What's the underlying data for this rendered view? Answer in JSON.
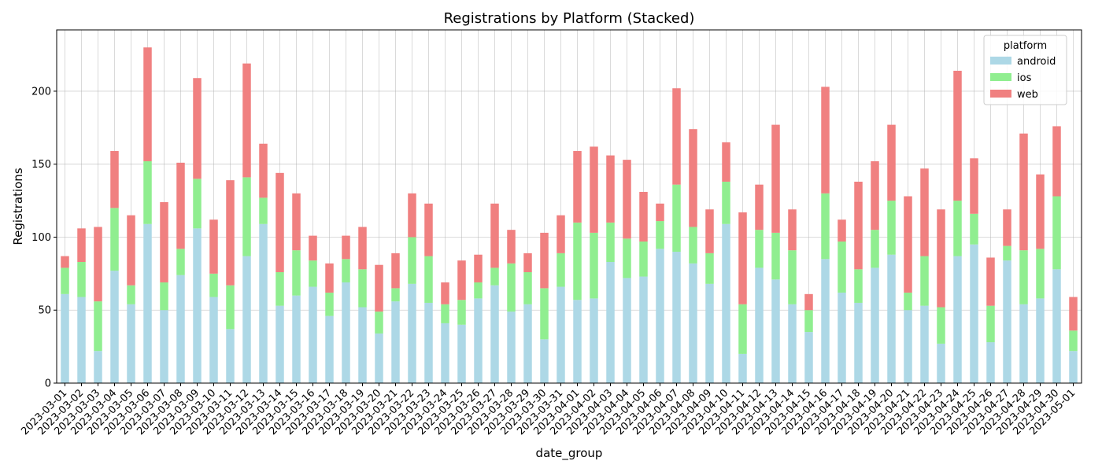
{
  "chart_data": {
    "type": "bar",
    "stacked": true,
    "title": "Registrations by Platform (Stacked)",
    "xlabel": "date_group",
    "ylabel": "Registrations",
    "ylim": [
      0,
      242
    ],
    "yticks": [
      0,
      50,
      100,
      150,
      200
    ],
    "grid": true,
    "legend": {
      "title": "platform",
      "placement": "top-right"
    },
    "categories": [
      "2023-03-01",
      "2023-03-02",
      "2023-03-03",
      "2023-03-04",
      "2023-03-05",
      "2023-03-06",
      "2023-03-07",
      "2023-03-08",
      "2023-03-09",
      "2023-03-10",
      "2023-03-11",
      "2023-03-12",
      "2023-03-13",
      "2023-03-14",
      "2023-03-15",
      "2023-03-16",
      "2023-03-17",
      "2023-03-18",
      "2023-03-19",
      "2023-03-20",
      "2023-03-21",
      "2023-03-22",
      "2023-03-23",
      "2023-03-24",
      "2023-03-25",
      "2023-03-26",
      "2023-03-27",
      "2023-03-28",
      "2023-03-29",
      "2023-03-30",
      "2023-03-31",
      "2023-04-01",
      "2023-04-02",
      "2023-04-03",
      "2023-04-04",
      "2023-04-05",
      "2023-04-06",
      "2023-04-07",
      "2023-04-08",
      "2023-04-09",
      "2023-04-10",
      "2023-04-11",
      "2023-04-12",
      "2023-04-13",
      "2023-04-14",
      "2023-04-15",
      "2023-04-16",
      "2023-04-17",
      "2023-04-18",
      "2023-04-19",
      "2023-04-20",
      "2023-04-21",
      "2023-04-22",
      "2023-04-23",
      "2023-04-24",
      "2023-04-25",
      "2023-04-26",
      "2023-04-27",
      "2023-04-28",
      "2023-04-29",
      "2023-04-30",
      "2023-05-01"
    ],
    "series": [
      {
        "name": "android",
        "color": "#add8e6",
        "values": [
          61,
          59,
          22,
          77,
          54,
          109,
          50,
          74,
          106,
          59,
          37,
          87,
          109,
          53,
          60,
          66,
          46,
          69,
          52,
          34,
          56,
          68,
          55,
          41,
          40,
          58,
          67,
          49,
          54,
          30,
          66,
          57,
          58,
          83,
          72,
          73,
          92,
          90,
          82,
          68,
          109,
          20,
          79,
          71,
          54,
          35,
          85,
          62,
          55,
          79,
          88,
          50,
          53,
          27,
          87,
          95,
          28,
          84,
          54,
          58,
          78,
          22
        ]
      },
      {
        "name": "ios",
        "color": "#90ee90",
        "values": [
          18,
          24,
          34,
          43,
          13,
          43,
          19,
          18,
          34,
          16,
          30,
          54,
          18,
          23,
          31,
          18,
          16,
          16,
          26,
          15,
          9,
          32,
          32,
          13,
          17,
          11,
          12,
          33,
          22,
          35,
          23,
          53,
          45,
          27,
          27,
          24,
          19,
          46,
          25,
          21,
          29,
          34,
          26,
          32,
          37,
          15,
          45,
          35,
          23,
          26,
          37,
          12,
          34,
          25,
          38,
          21,
          25,
          10,
          37,
          34,
          50,
          14
        ]
      },
      {
        "name": "web",
        "color": "#f08080",
        "values": [
          8,
          23,
          51,
          39,
          48,
          78,
          55,
          59,
          69,
          37,
          72,
          78,
          37,
          68,
          39,
          17,
          20,
          16,
          29,
          32,
          24,
          30,
          36,
          15,
          27,
          19,
          44,
          23,
          13,
          38,
          26,
          49,
          59,
          46,
          54,
          34,
          12,
          66,
          67,
          30,
          27,
          63,
          31,
          74,
          28,
          11,
          73,
          15,
          60,
          47,
          52,
          66,
          60,
          67,
          89,
          38,
          33,
          25,
          80,
          51,
          48,
          23
        ]
      }
    ]
  }
}
